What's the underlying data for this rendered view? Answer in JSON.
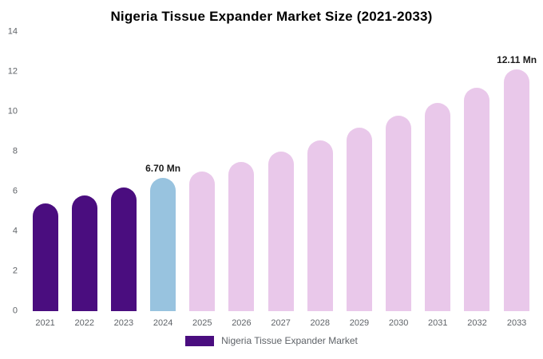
{
  "title": "Nigeria Tissue Expander Market Size (2021-2033)",
  "legend": {
    "label": "Nigeria Tissue Expander Market",
    "swatch_color": "#4A0D7F"
  },
  "colors": {
    "historical_bar": "#4A0D7F",
    "current_year_bar": "#98C3DF",
    "forecast_bar": "#E9C8EA",
    "axis_text": "#5f6368"
  },
  "chart_data": {
    "type": "bar",
    "title": "Nigeria Tissue Expander Market Size (2021-2033)",
    "xlabel": "",
    "ylabel": "",
    "ylim": [
      0,
      14
    ],
    "y_ticks": [
      0,
      2,
      4,
      6,
      8,
      10,
      12,
      14
    ],
    "grid": false,
    "legend_position": "bottom",
    "legend_entries": [
      "Nigeria Tissue Expander Market"
    ],
    "categories": [
      "2021",
      "2022",
      "2023",
      "2024",
      "2025",
      "2026",
      "2027",
      "2028",
      "2029",
      "2030",
      "2031",
      "2032",
      "2033"
    ],
    "values": [
      5.4,
      5.8,
      6.2,
      6.7,
      7.0,
      7.5,
      8.0,
      8.55,
      9.2,
      9.8,
      10.45,
      11.2,
      12.11
    ],
    "data_labels": [
      "",
      "",
      "",
      "6.70 Mn",
      "",
      "",
      "",
      "",
      "",
      "",
      "",
      "",
      "12.11 Mn"
    ],
    "bar_colors": [
      "#4A0D7F",
      "#4A0D7F",
      "#4A0D7F",
      "#98C3DF",
      "#E9C8EA",
      "#E9C8EA",
      "#E9C8EA",
      "#E9C8EA",
      "#E9C8EA",
      "#E9C8EA",
      "#E9C8EA",
      "#E9C8EA",
      "#E9C8EA"
    ]
  }
}
